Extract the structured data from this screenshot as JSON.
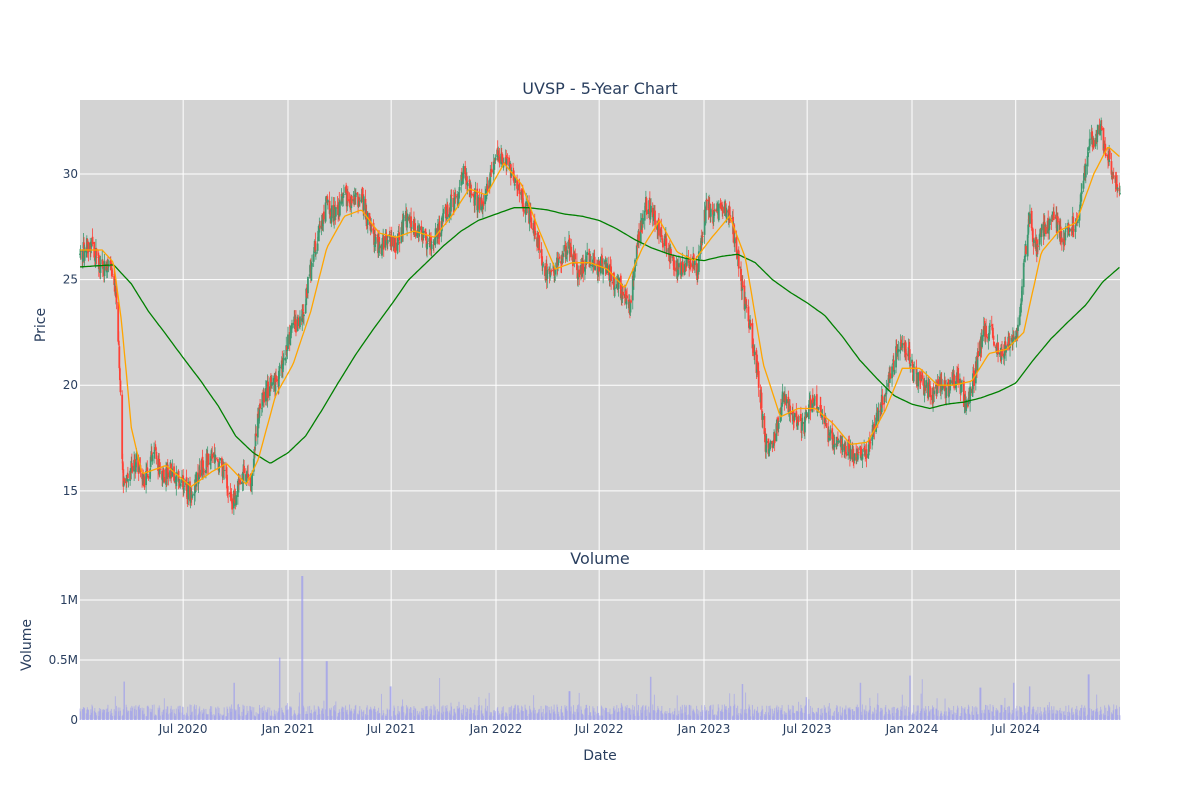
{
  "chart_data": [
    {
      "type": "candlestick",
      "title": "UVSP - 5-Year Chart",
      "xlabel": "",
      "ylabel": "Price",
      "xlim": [
        "2020-01-02",
        "2024-12-31"
      ],
      "ylim": [
        12.2,
        33.5
      ],
      "yticks": [
        15,
        20,
        25,
        30
      ],
      "grid": true,
      "colors": {
        "plot_bg": "#d3d3d3",
        "grid": "#ffffff",
        "up": "#3d9970",
        "down": "#ff4136",
        "ma_short": "#ffa500",
        "ma_long": "#008000"
      },
      "price_anchors": [
        [
          "2020-01-02",
          26.2
        ],
        [
          "2020-01-20",
          26.8
        ],
        [
          "2020-02-10",
          25.5
        ],
        [
          "2020-02-25",
          25.8
        ],
        [
          "2020-03-05",
          24.0
        ],
        [
          "2020-03-12",
          20.5
        ],
        [
          "2020-03-18",
          15.0
        ],
        [
          "2020-03-25",
          15.8
        ],
        [
          "2020-04-10",
          16.5
        ],
        [
          "2020-04-25",
          15.5
        ],
        [
          "2020-05-10",
          16.8
        ],
        [
          "2020-05-25",
          15.8
        ],
        [
          "2020-06-10",
          16.0
        ],
        [
          "2020-06-25",
          15.5
        ],
        [
          "2020-07-15",
          14.8
        ],
        [
          "2020-08-01",
          16.0
        ],
        [
          "2020-08-20",
          16.8
        ],
        [
          "2020-09-10",
          16.0
        ],
        [
          "2020-09-25",
          14.3
        ],
        [
          "2020-10-15",
          16.0
        ],
        [
          "2020-10-30",
          15.5
        ],
        [
          "2020-11-10",
          18.8
        ],
        [
          "2020-11-25",
          19.8
        ],
        [
          "2020-12-15",
          20.3
        ],
        [
          "2021-01-08",
          22.8
        ],
        [
          "2021-01-25",
          23.0
        ],
        [
          "2021-02-10",
          25.5
        ],
        [
          "2021-02-25",
          27.5
        ],
        [
          "2021-03-10",
          28.5
        ],
        [
          "2021-03-25",
          28.0
        ],
        [
          "2021-04-10",
          29.0
        ],
        [
          "2021-04-25",
          28.5
        ],
        [
          "2021-05-10",
          29.0
        ],
        [
          "2021-05-25",
          27.5
        ],
        [
          "2021-06-10",
          26.5
        ],
        [
          "2021-06-25",
          27.0
        ],
        [
          "2021-07-10",
          26.5
        ],
        [
          "2021-07-25",
          28.0
        ],
        [
          "2021-08-10",
          27.5
        ],
        [
          "2021-08-25",
          27.0
        ],
        [
          "2021-09-10",
          26.8
        ],
        [
          "2021-09-25",
          27.5
        ],
        [
          "2021-10-10",
          28.5
        ],
        [
          "2021-10-25",
          29.0
        ],
        [
          "2021-11-05",
          30.0
        ],
        [
          "2021-11-20",
          29.0
        ],
        [
          "2021-12-05",
          28.5
        ],
        [
          "2021-12-20",
          29.5
        ],
        [
          "2022-01-05",
          31.0
        ],
        [
          "2022-01-20",
          30.5
        ],
        [
          "2022-02-05",
          29.5
        ],
        [
          "2022-02-20",
          28.5
        ],
        [
          "2022-03-10",
          27.5
        ],
        [
          "2022-03-25",
          25.5
        ],
        [
          "2022-04-10",
          25.2
        ],
        [
          "2022-04-25",
          26.0
        ],
        [
          "2022-05-10",
          26.5
        ],
        [
          "2022-05-25",
          25.3
        ],
        [
          "2022-06-10",
          26.0
        ],
        [
          "2022-06-25",
          25.5
        ],
        [
          "2022-07-10",
          25.8
        ],
        [
          "2022-07-25",
          25.0
        ],
        [
          "2022-08-10",
          24.5
        ],
        [
          "2022-08-25",
          23.8
        ],
        [
          "2022-09-05",
          26.5
        ],
        [
          "2022-09-20",
          28.5
        ],
        [
          "2022-10-05",
          28.0
        ],
        [
          "2022-10-20",
          27.0
        ],
        [
          "2022-11-05",
          26.0
        ],
        [
          "2022-11-20",
          25.5
        ],
        [
          "2022-12-05",
          26.0
        ],
        [
          "2022-12-20",
          25.5
        ],
        [
          "2023-01-05",
          28.5
        ],
        [
          "2023-01-20",
          28.0
        ],
        [
          "2023-02-05",
          28.5
        ],
        [
          "2023-02-20",
          27.5
        ],
        [
          "2023-03-05",
          25.5
        ],
        [
          "2023-03-12",
          24.0
        ],
        [
          "2023-03-25",
          22.5
        ],
        [
          "2023-04-10",
          19.5
        ],
        [
          "2023-04-20",
          17.0
        ],
        [
          "2023-05-05",
          17.5
        ],
        [
          "2023-05-20",
          19.5
        ],
        [
          "2023-06-05",
          18.5
        ],
        [
          "2023-06-25",
          18.0
        ],
        [
          "2023-07-10",
          19.5
        ],
        [
          "2023-07-25",
          18.5
        ],
        [
          "2023-08-10",
          17.5
        ],
        [
          "2023-08-25",
          17.2
        ],
        [
          "2023-09-10",
          17.0
        ],
        [
          "2023-09-25",
          16.8
        ],
        [
          "2023-10-15",
          17.0
        ],
        [
          "2023-10-30",
          18.5
        ],
        [
          "2023-11-15",
          19.5
        ],
        [
          "2023-12-05",
          21.5
        ],
        [
          "2023-12-20",
          22.0
        ],
        [
          "2024-01-05",
          20.5
        ],
        [
          "2024-01-20",
          20.0
        ],
        [
          "2024-02-05",
          19.5
        ],
        [
          "2024-02-20",
          20.2
        ],
        [
          "2024-03-05",
          19.8
        ],
        [
          "2024-03-20",
          20.5
        ],
        [
          "2024-04-05",
          19.0
        ],
        [
          "2024-04-20",
          20.5
        ],
        [
          "2024-05-05",
          22.5
        ],
        [
          "2024-05-20",
          22.5
        ],
        [
          "2024-06-05",
          21.5
        ],
        [
          "2024-06-20",
          22.0
        ],
        [
          "2024-07-05",
          22.5
        ],
        [
          "2024-07-15",
          25.5
        ],
        [
          "2024-07-25",
          28.0
        ],
        [
          "2024-08-05",
          26.5
        ],
        [
          "2024-08-20",
          27.5
        ],
        [
          "2024-09-05",
          28.0
        ],
        [
          "2024-09-20",
          27.0
        ],
        [
          "2024-10-05",
          27.5
        ],
        [
          "2024-10-20",
          28.0
        ],
        [
          "2024-11-01",
          30.5
        ],
        [
          "2024-11-10",
          31.5
        ],
        [
          "2024-11-25",
          32.0
        ],
        [
          "2024-12-10",
          31.0
        ],
        [
          "2024-12-20",
          29.5
        ],
        [
          "2024-12-31",
          29.5
        ]
      ],
      "ma_short_anchors": [
        [
          "2020-01-02",
          26.4
        ],
        [
          "2020-02-10",
          26.4
        ],
        [
          "2020-03-01",
          25.8
        ],
        [
          "2020-03-15",
          23.0
        ],
        [
          "2020-04-01",
          18.0
        ],
        [
          "2020-04-20",
          15.8
        ],
        [
          "2020-06-01",
          16.2
        ],
        [
          "2020-07-15",
          15.2
        ],
        [
          "2020-08-20",
          15.9
        ],
        [
          "2020-09-15",
          16.3
        ],
        [
          "2020-10-20",
          15.3
        ],
        [
          "2020-11-10",
          16.5
        ],
        [
          "2020-12-10",
          19.5
        ],
        [
          "2021-01-10",
          21.0
        ],
        [
          "2021-02-10",
          23.5
        ],
        [
          "2021-03-10",
          26.5
        ],
        [
          "2021-04-10",
          28.0
        ],
        [
          "2021-05-10",
          28.3
        ],
        [
          "2021-06-10",
          27.2
        ],
        [
          "2021-07-10",
          27.0
        ],
        [
          "2021-08-10",
          27.3
        ],
        [
          "2021-09-15",
          27.0
        ],
        [
          "2021-10-15",
          28.0
        ],
        [
          "2021-11-15",
          29.3
        ],
        [
          "2021-12-15",
          29.0
        ],
        [
          "2022-01-15",
          30.5
        ],
        [
          "2022-02-15",
          29.5
        ],
        [
          "2022-03-15",
          27.5
        ],
        [
          "2022-04-15",
          25.5
        ],
        [
          "2022-05-15",
          25.8
        ],
        [
          "2022-06-15",
          25.8
        ],
        [
          "2022-07-15",
          25.5
        ],
        [
          "2022-08-15",
          24.6
        ],
        [
          "2022-09-15",
          26.5
        ],
        [
          "2022-10-15",
          27.8
        ],
        [
          "2022-11-15",
          26.3
        ],
        [
          "2022-12-15",
          25.9
        ],
        [
          "2023-01-15",
          27.0
        ],
        [
          "2023-02-15",
          28.0
        ],
        [
          "2023-03-15",
          26.0
        ],
        [
          "2023-04-15",
          21.0
        ],
        [
          "2023-05-15",
          18.5
        ],
        [
          "2023-06-15",
          18.9
        ],
        [
          "2023-07-15",
          18.9
        ],
        [
          "2023-08-15",
          18.2
        ],
        [
          "2023-09-15",
          17.2
        ],
        [
          "2023-10-15",
          17.3
        ],
        [
          "2023-11-15",
          18.8
        ],
        [
          "2023-12-15",
          20.8
        ],
        [
          "2024-01-15",
          20.8
        ],
        [
          "2024-02-15",
          20.0
        ],
        [
          "2024-03-15",
          20.0
        ],
        [
          "2024-04-15",
          20.2
        ],
        [
          "2024-05-15",
          21.5
        ],
        [
          "2024-06-15",
          21.7
        ],
        [
          "2024-07-15",
          22.5
        ],
        [
          "2024-08-15",
          26.3
        ],
        [
          "2024-09-15",
          27.3
        ],
        [
          "2024-10-15",
          27.7
        ],
        [
          "2024-11-15",
          30.0
        ],
        [
          "2024-12-10",
          31.3
        ],
        [
          "2024-12-31",
          30.8
        ]
      ],
      "ma_long_anchors": [
        [
          "2020-01-02",
          25.6
        ],
        [
          "2020-03-01",
          25.7
        ],
        [
          "2020-04-01",
          24.8
        ],
        [
          "2020-05-01",
          23.5
        ],
        [
          "2020-06-01",
          22.4
        ],
        [
          "2020-07-01",
          21.3
        ],
        [
          "2020-08-01",
          20.2
        ],
        [
          "2020-09-01",
          19.0
        ],
        [
          "2020-10-01",
          17.6
        ],
        [
          "2020-11-01",
          16.8
        ],
        [
          "2020-12-01",
          16.3
        ],
        [
          "2021-01-01",
          16.8
        ],
        [
          "2021-02-01",
          17.6
        ],
        [
          "2021-03-01",
          18.8
        ],
        [
          "2021-04-01",
          20.2
        ],
        [
          "2021-05-01",
          21.5
        ],
        [
          "2021-06-01",
          22.7
        ],
        [
          "2021-07-01",
          23.8
        ],
        [
          "2021-08-01",
          25.0
        ],
        [
          "2021-09-01",
          25.8
        ],
        [
          "2021-10-01",
          26.6
        ],
        [
          "2021-11-01",
          27.3
        ],
        [
          "2021-12-01",
          27.8
        ],
        [
          "2022-01-01",
          28.1
        ],
        [
          "2022-02-01",
          28.4
        ],
        [
          "2022-03-01",
          28.4
        ],
        [
          "2022-04-01",
          28.3
        ],
        [
          "2022-05-01",
          28.1
        ],
        [
          "2022-06-01",
          28.0
        ],
        [
          "2022-07-01",
          27.8
        ],
        [
          "2022-08-01",
          27.4
        ],
        [
          "2022-09-01",
          26.9
        ],
        [
          "2022-10-01",
          26.5
        ],
        [
          "2022-11-01",
          26.2
        ],
        [
          "2022-12-01",
          26.0
        ],
        [
          "2023-01-01",
          25.9
        ],
        [
          "2023-02-01",
          26.1
        ],
        [
          "2023-03-01",
          26.2
        ],
        [
          "2023-04-01",
          25.8
        ],
        [
          "2023-05-01",
          25.0
        ],
        [
          "2023-06-01",
          24.4
        ],
        [
          "2023-07-01",
          23.9
        ],
        [
          "2023-08-01",
          23.3
        ],
        [
          "2023-09-01",
          22.3
        ],
        [
          "2023-10-01",
          21.2
        ],
        [
          "2023-11-01",
          20.3
        ],
        [
          "2023-12-01",
          19.5
        ],
        [
          "2024-01-01",
          19.1
        ],
        [
          "2024-02-01",
          18.9
        ],
        [
          "2024-03-01",
          19.1
        ],
        [
          "2024-04-01",
          19.2
        ],
        [
          "2024-05-01",
          19.4
        ],
        [
          "2024-06-01",
          19.7
        ],
        [
          "2024-07-01",
          20.1
        ],
        [
          "2024-08-01",
          21.2
        ],
        [
          "2024-09-01",
          22.2
        ],
        [
          "2024-10-01",
          23.0
        ],
        [
          "2024-11-01",
          23.8
        ],
        [
          "2024-12-01",
          24.9
        ],
        [
          "2024-12-31",
          25.6
        ]
      ]
    },
    {
      "type": "bar",
      "title": "Volume",
      "xlabel": "Date",
      "ylabel": "Volume",
      "ylim": [
        0,
        1250000
      ],
      "yticks": [
        0,
        500000,
        1000000
      ],
      "ytick_labels": [
        "0",
        "0.5M",
        "1M"
      ],
      "xticks": [
        {
          "date": "2020-07-01",
          "label": "Jul 2020"
        },
        {
          "date": "2021-01-01",
          "label": "Jan 2021"
        },
        {
          "date": "2021-07-01",
          "label": "Jul 2021"
        },
        {
          "date": "2022-01-01",
          "label": "Jan 2022"
        },
        {
          "date": "2022-07-01",
          "label": "Jul 2022"
        },
        {
          "date": "2023-01-01",
          "label": "Jan 2023"
        },
        {
          "date": "2023-07-01",
          "label": "Jul 2023"
        },
        {
          "date": "2024-01-01",
          "label": "Jan 2024"
        },
        {
          "date": "2024-07-01",
          "label": "Jul 2024"
        }
      ],
      "colors": {
        "plot_bg": "#d3d3d3",
        "grid": "#ffffff",
        "bar": "#9999ee"
      },
      "volume_spikes": [
        [
          "2020-03-20",
          320000
        ],
        [
          "2020-09-28",
          310000
        ],
        [
          "2020-12-18",
          520000
        ],
        [
          "2021-01-26",
          1200000
        ],
        [
          "2021-03-10",
          490000
        ],
        [
          "2021-06-30",
          280000
        ],
        [
          "2021-09-25",
          350000
        ],
        [
          "2022-05-10",
          240000
        ],
        [
          "2022-09-30",
          360000
        ],
        [
          "2023-03-10",
          300000
        ],
        [
          "2023-06-30",
          190000
        ],
        [
          "2023-10-02",
          310000
        ],
        [
          "2023-12-29",
          370000
        ],
        [
          "2024-01-20",
          340000
        ],
        [
          "2024-04-30",
          270000
        ],
        [
          "2024-06-28",
          310000
        ],
        [
          "2024-07-26",
          280000
        ],
        [
          "2024-11-06",
          380000
        ]
      ],
      "volume_base_level": 100000
    }
  ]
}
